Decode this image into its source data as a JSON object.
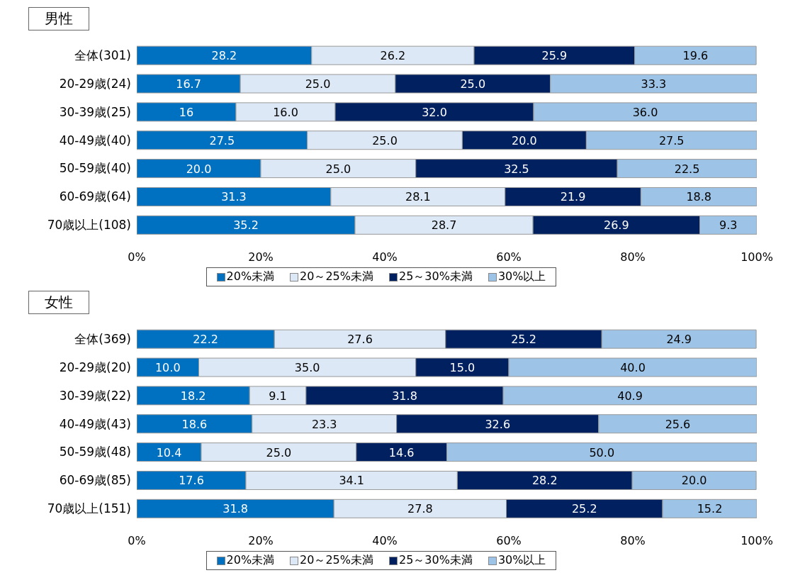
{
  "chart_data": [
    {
      "type": "bar",
      "title": "男性",
      "orientation": "horizontal",
      "stacked": true,
      "legend": "bottom",
      "grid": false,
      "categories": [
        "全体(301)",
        "20-29歳(24)",
        "30-39歳(25)",
        "40-49歳(40)",
        "50-59歳(40)",
        "60-69歳(64)",
        "70歳以上(108)"
      ],
      "xlim": [
        0,
        100
      ],
      "xticks": [
        {
          "value": 0,
          "label": "0%"
        },
        {
          "value": 20,
          "label": "20%"
        },
        {
          "value": 40,
          "label": "40%"
        },
        {
          "value": 60,
          "label": "60%"
        },
        {
          "value": 80,
          "label": "80%"
        },
        {
          "value": 100,
          "label": "100%"
        }
      ],
      "series": [
        {
          "name": "20%未満",
          "color": "#0070c0",
          "values": [
            28.2,
            16.7,
            16,
            27.5,
            20.0,
            31.3,
            35.2
          ],
          "value_labels": [
            "28.2",
            "16.7",
            "16",
            "27.5",
            "20.0",
            "31.3",
            "35.2"
          ]
        },
        {
          "name": "20～25%未満",
          "color": "#dce8f5",
          "values": [
            26.2,
            25.0,
            16.0,
            25.0,
            25.0,
            28.1,
            28.7
          ],
          "value_labels": [
            "26.2",
            "25.0",
            "16.0",
            "25.0",
            "25.0",
            "28.1",
            "28.7"
          ]
        },
        {
          "name": "25～30%未満",
          "color": "#002060",
          "values": [
            25.9,
            25.0,
            32.0,
            20.0,
            32.5,
            21.9,
            26.9
          ],
          "value_labels": [
            "25.9",
            "25.0",
            "32.0",
            "20.0",
            "32.5",
            "21.9",
            "26.9"
          ]
        },
        {
          "name": "30%以上",
          "color": "#9dc3e6",
          "values": [
            19.6,
            33.3,
            36.0,
            27.5,
            22.5,
            18.8,
            9.3
          ],
          "value_labels": [
            "19.6",
            "33.3",
            "36.0",
            "27.5",
            "22.5",
            "18.8",
            "9.3"
          ]
        }
      ]
    },
    {
      "type": "bar",
      "title": "女性",
      "orientation": "horizontal",
      "stacked": true,
      "legend": "bottom",
      "grid": false,
      "categories": [
        "全体(369)",
        "20-29歳(20)",
        "30-39歳(22)",
        "40-49歳(43)",
        "50-59歳(48)",
        "60-69歳(85)",
        "70歳以上(151)"
      ],
      "xlim": [
        0,
        100
      ],
      "xticks": [
        {
          "value": 0,
          "label": "0%"
        },
        {
          "value": 20,
          "label": "20%"
        },
        {
          "value": 40,
          "label": "40%"
        },
        {
          "value": 60,
          "label": "60%"
        },
        {
          "value": 80,
          "label": "80%"
        },
        {
          "value": 100,
          "label": "100%"
        }
      ],
      "series": [
        {
          "name": "20%未満",
          "color": "#0070c0",
          "values": [
            22.2,
            10.0,
            18.2,
            18.6,
            10.4,
            17.6,
            31.8
          ],
          "value_labels": [
            "22.2",
            "10.0",
            "18.2",
            "18.6",
            "10.4",
            "17.6",
            "31.8"
          ]
        },
        {
          "name": "20～25%未満",
          "color": "#dce8f5",
          "values": [
            27.6,
            35.0,
            9.1,
            23.3,
            25.0,
            34.1,
            27.8
          ],
          "value_labels": [
            "27.6",
            "35.0",
            "9.1",
            "23.3",
            "25.0",
            "34.1",
            "27.8"
          ]
        },
        {
          "name": "25～30%未満",
          "color": "#002060",
          "values": [
            25.2,
            15.0,
            31.8,
            32.6,
            14.6,
            28.2,
            25.2
          ],
          "value_labels": [
            "25.2",
            "15.0",
            "31.8",
            "32.6",
            "14.6",
            "28.2",
            "25.2"
          ]
        },
        {
          "name": "30%以上",
          "color": "#9dc3e6",
          "values": [
            24.9,
            40.0,
            40.9,
            25.6,
            50.0,
            20.0,
            15.2
          ],
          "value_labels": [
            "24.9",
            "40.0",
            "40.9",
            "25.6",
            "50.0",
            "20.0",
            "15.2"
          ]
        }
      ]
    }
  ]
}
